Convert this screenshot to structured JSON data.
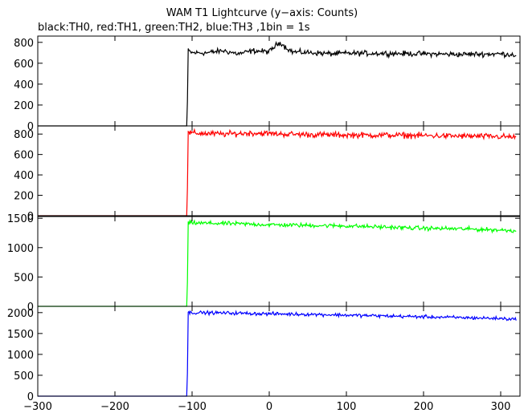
{
  "chart_data": {
    "type": "line",
    "title": "WAM T1 Lightcurve (y−axis: Counts)",
    "subtitle": "black:TH0, red:TH1, green:TH2, blue:TH3 ,1bin = 1s",
    "xlim": [
      -300,
      325
    ],
    "xticks": [
      -300,
      -200,
      -100,
      0,
      100,
      200,
      300
    ],
    "x_tick_labels": [
      "−300",
      "−200",
      "−100",
      "0",
      "100",
      "200",
      "300"
    ],
    "grid": false,
    "panels": [
      {
        "name": "TH0",
        "color": "#000000",
        "ylim": [
          0,
          860
        ],
        "yticks": [
          0,
          200,
          400,
          600,
          800
        ],
        "y_tick_labels": [
          "0",
          "200",
          "400",
          "600",
          "800"
        ],
        "x": [
          -300,
          -107,
          -106,
          -105,
          -100,
          -80,
          -60,
          -40,
          -20,
          0,
          10,
          15,
          20,
          30,
          40,
          60,
          80,
          100,
          150,
          200,
          250,
          300,
          320
        ],
        "values": [
          0,
          0,
          230,
          720,
          700,
          700,
          720,
          690,
          720,
          710,
          780,
          800,
          760,
          710,
          705,
          700,
          690,
          695,
          695,
          690,
          685,
          690,
          680
        ],
        "noise": 25
      },
      {
        "name": "TH1",
        "color": "#ff0000",
        "ylim": [
          0,
          880
        ],
        "yticks": [
          0,
          200,
          400,
          600,
          800
        ],
        "y_tick_labels": [
          "0",
          "200",
          "400",
          "600",
          "800"
        ],
        "x": [
          -300,
          -107,
          -106,
          -105,
          -100,
          -60,
          -20,
          0,
          20,
          50,
          100,
          150,
          200,
          250,
          300,
          320
        ],
        "values": [
          0,
          0,
          280,
          810,
          810,
          800,
          810,
          805,
          800,
          795,
          790,
          790,
          785,
          780,
          775,
          770
        ],
        "noise": 28
      },
      {
        "name": "TH2",
        "color": "#00ff00",
        "ylim": [
          0,
          1530
        ],
        "yticks": [
          0,
          500,
          1000,
          1500
        ],
        "y_tick_labels": [
          "0",
          "500",
          "1000",
          "1500"
        ],
        "x": [
          -300,
          -107,
          -106,
          -105,
          -100,
          -50,
          0,
          50,
          100,
          150,
          200,
          250,
          300,
          320
        ],
        "values": [
          0,
          0,
          400,
          1420,
          1420,
          1410,
          1390,
          1380,
          1370,
          1350,
          1330,
          1320,
          1300,
          1290
        ],
        "noise": 35
      },
      {
        "name": "TH3",
        "color": "#0000ff",
        "ylim": [
          0,
          2150
        ],
        "yticks": [
          0,
          500,
          1000,
          1500,
          2000
        ],
        "y_tick_labels": [
          "0",
          "500",
          "1000",
          "1500",
          "2000"
        ],
        "x": [
          -300,
          -107,
          -106,
          -105,
          -100,
          -50,
          0,
          50,
          100,
          150,
          200,
          250,
          300,
          320
        ],
        "values": [
          0,
          0,
          560,
          2000,
          2000,
          1990,
          1970,
          1960,
          1940,
          1920,
          1900,
          1880,
          1860,
          1840
        ],
        "noise": 40
      }
    ]
  }
}
